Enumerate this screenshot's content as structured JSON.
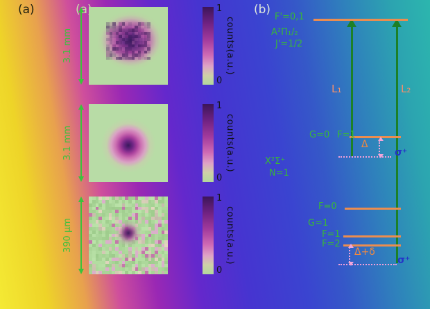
{
  "figure": {
    "panel_a": {
      "outer_label": "(a)",
      "inner_label": "(a)",
      "rows": [
        {
          "scale": "3.1 mm",
          "cbar_max": "1",
          "cbar_min": "0",
          "cbar_label": "counts(a.u.)"
        },
        {
          "scale": "3.1 mm",
          "cbar_max": "1",
          "cbar_min": "0",
          "cbar_label": "counts(a.u.)"
        },
        {
          "scale": "390 μm",
          "cbar_max": "1",
          "cbar_min": "0",
          "cbar_label": "counts(a.u.)"
        }
      ]
    },
    "panel_b": {
      "label": "(b)",
      "excited_level": "F'=0,1",
      "excited_state": "A²Π₁/₂",
      "excited_j": "J'=1/2",
      "laser_1": "L₁",
      "laser_2": "L₂",
      "g0": "G=0",
      "g0_f1": "F=1",
      "delta": "Δ",
      "sigma_plus_upper": "σ⁺",
      "ground_state": "X²Σ⁺",
      "ground_n": "N=1",
      "f0": "F=0",
      "g1": "G=1",
      "g1_f1": "F=1",
      "g1_f2": "F=2",
      "delta_plus_delta": "Δ+δ",
      "sigma_plus_lower": "σ⁺"
    },
    "colors": {
      "green_label": "#38b838",
      "green_arrow": "#1c8028",
      "orange_level": "#ec8d4f",
      "pink_dotted": "#f2a0da",
      "sigma_blue": "#2433c8",
      "heatmap_low": "#b2d89c",
      "heatmap_high": "#3c1558"
    }
  }
}
